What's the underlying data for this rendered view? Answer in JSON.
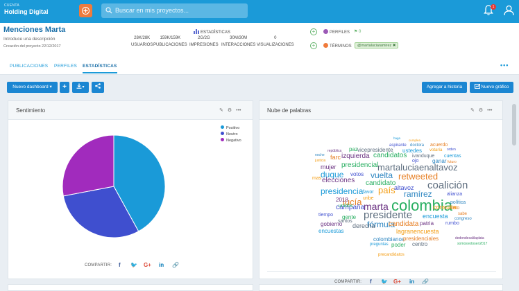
{
  "topbar": {
    "account_label": "CUENTA",
    "account_name": "Holding Digital",
    "search_placeholder": "Buscar en mis proyectos...",
    "notification_count": "1"
  },
  "project": {
    "title": "Menciones Marta",
    "description": "Introduce una descripción",
    "created": "Creación del proyecto 22/12/2017",
    "stats_title": "ESTADÍSTICAS",
    "stats": [
      {
        "value": "28K/28K",
        "label": "USUARIOS"
      },
      {
        "value": "159K/159K",
        "label": "PUBLICACIONES"
      },
      {
        "value": "2G/2G",
        "label": "IMPRESIONES"
      },
      {
        "value": "30M/30M",
        "label": "INTERACCIONES"
      },
      {
        "value": "0",
        "label": "VISUALIZACIONES"
      }
    ],
    "perfiles_label": "PERFILES",
    "perfiles_count": "0",
    "terminos_label": "TÉRMINOS",
    "terminos_tag": "@martaluciaramirez ✖"
  },
  "tabs": [
    "PUBLICACIONES",
    "PERFILES",
    "ESTADÍSTICAS"
  ],
  "toolbar": {
    "new_dashboard": "Nuevo dashboard",
    "add_history": "Agregar a historia",
    "new_chart": "Nuevo gráfico"
  },
  "sentiment_panel": {
    "title": "Sentimiento",
    "share_label": "COMPARTIR:",
    "legend": [
      {
        "label": "Positivo",
        "color": "#1a9ad8"
      },
      {
        "label": "Neutro",
        "color": "#3f4fcf"
      },
      {
        "label": "Negativo",
        "color": "#a12bbd"
      }
    ]
  },
  "chart_data": {
    "type": "pie",
    "categories": [
      "Positivo",
      "Neutro",
      "Negativo"
    ],
    "values": [
      42,
      30,
      28
    ],
    "colors": [
      "#1a9ad8",
      "#3f4fcf",
      "#a12bbd"
    ]
  },
  "wordcloud_panel": {
    "title": "Nube de palabras",
    "share_label": "COMPARTIR:",
    "words": [
      "haga",
      "cumplea",
      "aspirante",
      "doctora",
      "acuerdo",
      "república",
      "paz",
      "vicepresidente",
      "ustedes",
      "votaría",
      "orden",
      "noche",
      "farc",
      "izquierda",
      "candidatos",
      "ivanduque",
      "cuentas",
      "justicia",
      "ojo",
      "ganar",
      "futuro",
      "mujer",
      "presidencial",
      "martaluciaenaltavoz",
      "duque",
      "mas",
      "votos",
      "vuelta",
      "retweeted",
      "elecciones",
      "candidato",
      "coalición",
      "presidencia",
      "país",
      "altavoz",
      "ramírez",
      "lucía",
      "marta",
      "colombia",
      "presidente",
      "encuesta",
      "consulta",
      "campaña",
      "fórmula",
      "candidata",
      "patria",
      "gente",
      "derecha",
      "encuestas",
      "lagranencuesta",
      "rumbo",
      "colombianos",
      "presidenciales",
      "gobierno",
      "poder",
      "centro",
      "preguntas",
      "precandidatos",
      "alianza",
      "política",
      "voto",
      "2018",
      "unidos",
      "santos",
      "favor",
      "uribe",
      "tiempo",
      "congreso",
      "sabe",
      "dedondesalilaplata",
      "somosvotosen2017"
    ]
  },
  "share_icons": [
    "facebook",
    "twitter",
    "google-plus",
    "linkedin",
    "link"
  ]
}
